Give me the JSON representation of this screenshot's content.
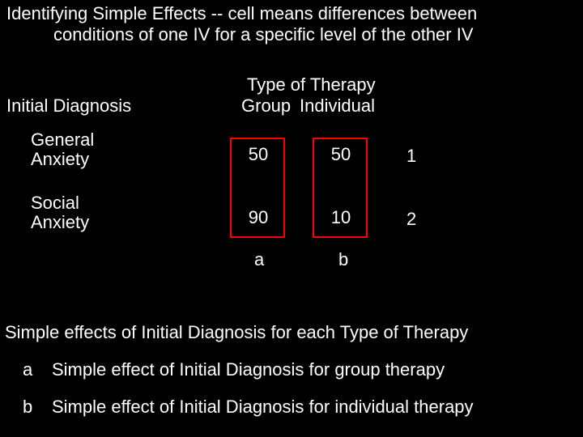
{
  "background_color": "#000000",
  "text_color": "#ffffff",
  "emphasis_color": "#ff0000",
  "font_family": "Arial",
  "base_fontsize": 22,
  "title": {
    "line1": "Identifying Simple Effects  --  cell means differences between",
    "line2": "conditions of one IV for a specific level of the other IV"
  },
  "table": {
    "type": "table",
    "column_header_title": "Type of Therapy",
    "columns": [
      "Group",
      "Individual"
    ],
    "row_header_title": "Initial Diagnosis",
    "rows": [
      {
        "label_line1": "General",
        "label_line2": "Anxiety",
        "values": [
          "50",
          "50"
        ],
        "row_number": "1"
      },
      {
        "label_line1": "Social",
        "label_line2": "Anxiety",
        "values": [
          "90",
          "10"
        ],
        "row_number": "2"
      }
    ],
    "column_annotations": [
      "a",
      "b"
    ],
    "column_rects": {
      "border_color": "#ff0000",
      "border_width": 2,
      "fill": "transparent"
    }
  },
  "footer": {
    "heading": "Simple effects of Initial Diagnosis for each Type of Therapy",
    "items": [
      {
        "key": "a",
        "text": "Simple effect of Initial Diagnosis for group therapy"
      },
      {
        "key": "b",
        "text": "Simple effect of Initial Diagnosis for individual therapy"
      }
    ]
  }
}
